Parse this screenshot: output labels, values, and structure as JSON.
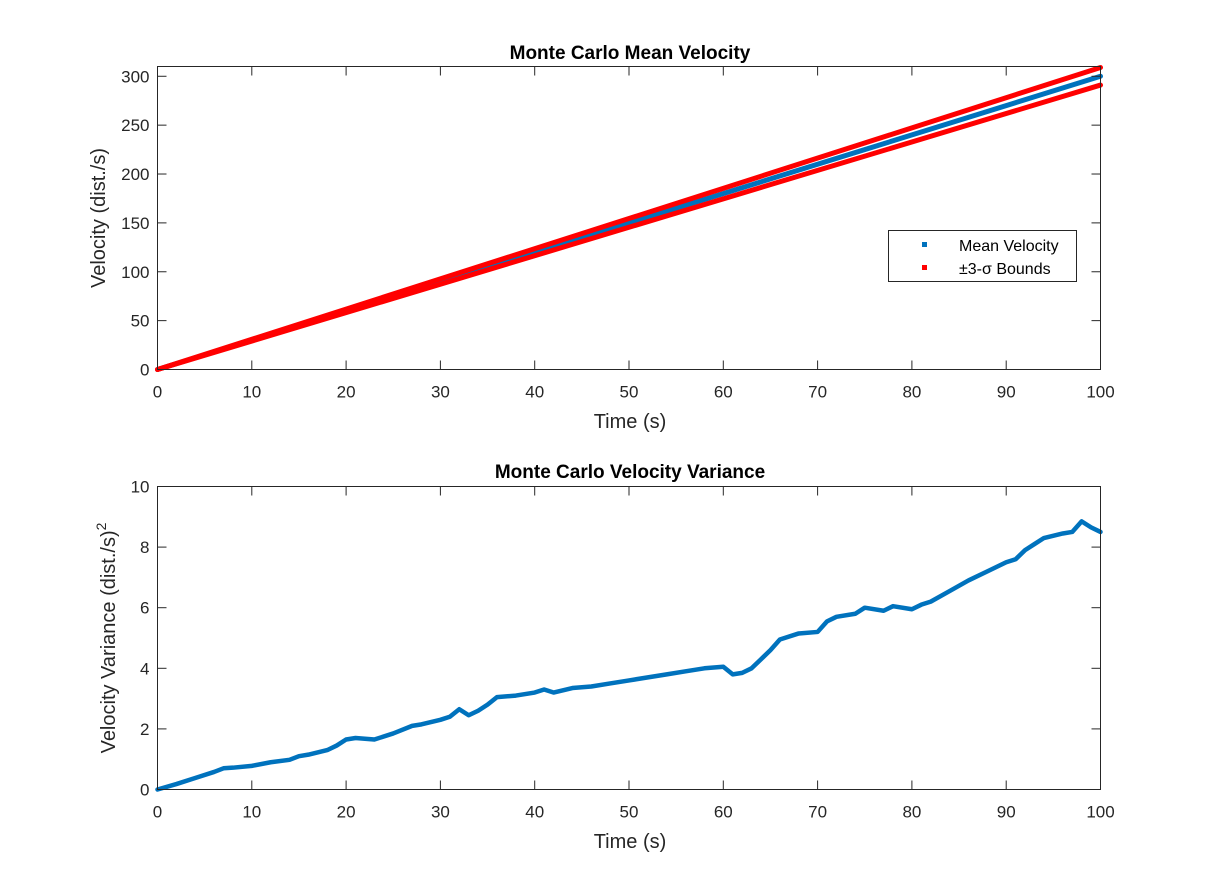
{
  "chart_data": [
    {
      "type": "scatter",
      "title": "Monte Carlo Mean Velocity",
      "xlabel": "Time (s)",
      "ylabel": "Velocity (dist./s)",
      "xlim": [
        0,
        100
      ],
      "ylim": [
        0,
        310
      ],
      "xticks": [
        "0",
        "10",
        "20",
        "30",
        "40",
        "50",
        "60",
        "70",
        "80",
        "90",
        "100"
      ],
      "yticks": [
        "0",
        "50",
        "100",
        "150",
        "200",
        "250",
        "300"
      ],
      "grid": false,
      "legend_placement": "right",
      "series": [
        {
          "name": "Mean Velocity",
          "color": "#0072BD",
          "x": [
            0,
            100
          ],
          "y": [
            0,
            300
          ]
        },
        {
          "name": "±3-σ Bounds",
          "color": "#FF0000",
          "x": [
            0,
            100
          ],
          "y": [
            0,
            309
          ]
        },
        {
          "name": "",
          "color": "#FF0000",
          "x": [
            0,
            100
          ],
          "y": [
            0,
            291
          ]
        }
      ]
    },
    {
      "type": "scatter",
      "title": "Monte Carlo Velocity Variance",
      "xlabel": "Time (s)",
      "ylabel": "Velocity Variance (dist./s)",
      "ylabel_superscript": "2",
      "xlim": [
        0,
        100
      ],
      "ylim": [
        0,
        10
      ],
      "xticks": [
        "0",
        "10",
        "20",
        "30",
        "40",
        "50",
        "60",
        "70",
        "80",
        "90",
        "100"
      ],
      "yticks": [
        "0",
        "2",
        "4",
        "6",
        "8",
        "10"
      ],
      "grid": false,
      "series": [
        {
          "name": "",
          "color": "#0072BD",
          "x": [
            0,
            2,
            4,
            6,
            7,
            8,
            10,
            12,
            14,
            15,
            16,
            18,
            19,
            20,
            21,
            23,
            25,
            27,
            28,
            30,
            31,
            32,
            33,
            34,
            35,
            36,
            38,
            40,
            41,
            42,
            44,
            46,
            48,
            50,
            52,
            54,
            56,
            58,
            60,
            61,
            62,
            63,
            64,
            65,
            66,
            68,
            70,
            71,
            72,
            74,
            75,
            77,
            78,
            80,
            81,
            82,
            84,
            86,
            88,
            90,
            91,
            92,
            93,
            94,
            96,
            97,
            98,
            99,
            100
          ],
          "y": [
            0,
            0.18,
            0.38,
            0.58,
            0.7,
            0.72,
            0.78,
            0.9,
            0.98,
            1.1,
            1.15,
            1.3,
            1.45,
            1.65,
            1.7,
            1.65,
            1.85,
            2.1,
            2.15,
            2.3,
            2.4,
            2.65,
            2.45,
            2.6,
            2.8,
            3.05,
            3.1,
            3.2,
            3.3,
            3.2,
            3.35,
            3.4,
            3.5,
            3.6,
            3.7,
            3.8,
            3.9,
            4.0,
            4.05,
            3.8,
            3.85,
            4.0,
            4.3,
            4.6,
            4.95,
            5.15,
            5.2,
            5.55,
            5.7,
            5.8,
            6.0,
            5.9,
            6.05,
            5.95,
            6.1,
            6.2,
            6.55,
            6.9,
            7.2,
            7.5,
            7.6,
            7.9,
            8.1,
            8.3,
            8.45,
            8.5,
            8.85,
            8.65,
            8.5
          ]
        }
      ]
    }
  ]
}
